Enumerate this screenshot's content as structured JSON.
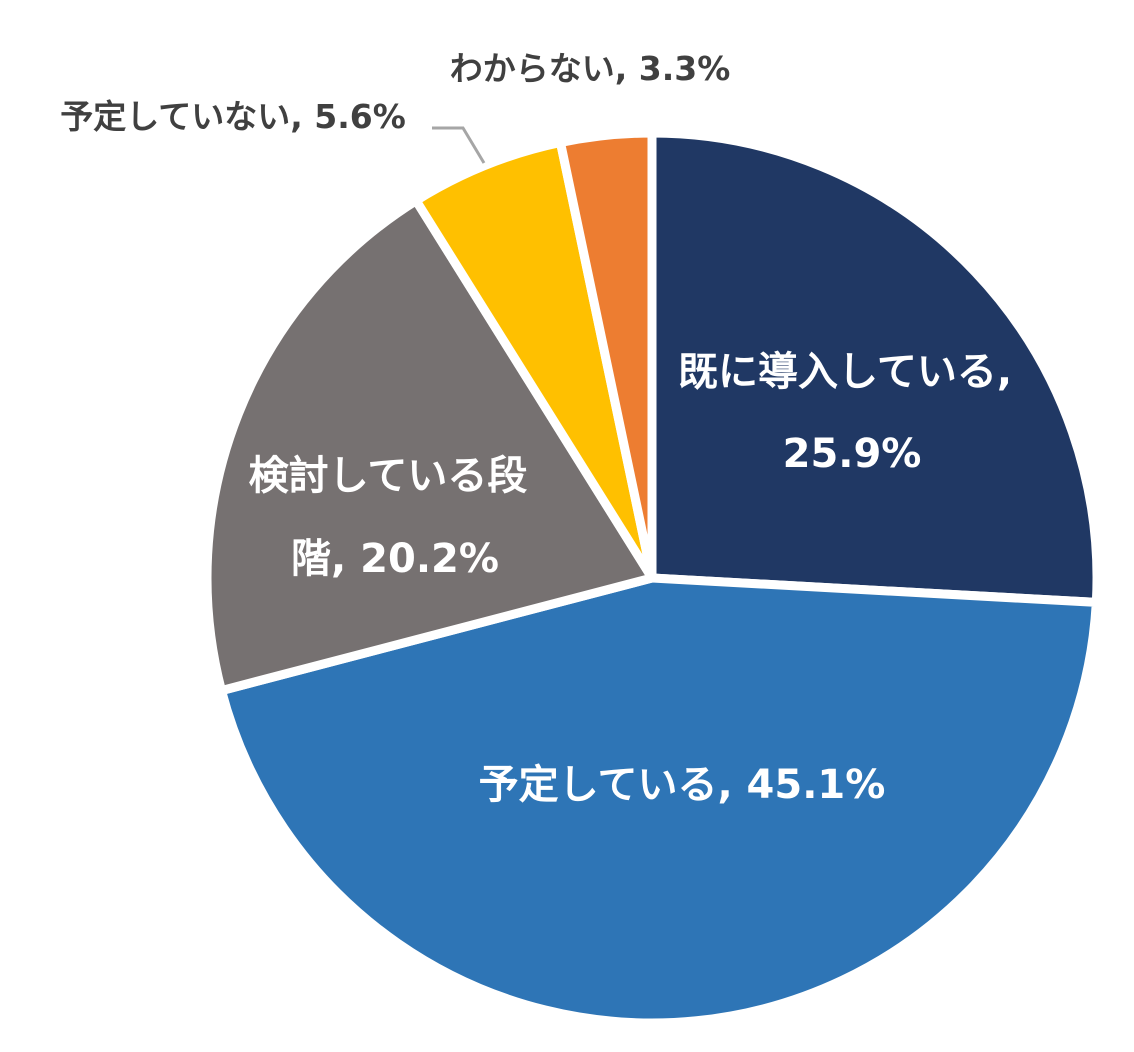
{
  "chart_data": {
    "type": "pie",
    "title": "",
    "start_angle_deg": 0,
    "direction": "clockwise",
    "slices": [
      {
        "label": "既に導入している",
        "value": 25.9,
        "value_text": "25.9%",
        "color": "#203864",
        "label_lines": [
          "既に導入している,",
          "25.9%"
        ]
      },
      {
        "label": "予定している",
        "value": 45.1,
        "value_text": "45.1%",
        "color": "#2E75B6",
        "label_lines": [
          "予定している, 45.1%"
        ]
      },
      {
        "label": "検討している段階",
        "value": 20.2,
        "value_text": "20.2%",
        "color": "#767171",
        "label_lines": [
          "検討している段",
          "階, 20.2%"
        ]
      },
      {
        "label": "予定していない",
        "value": 5.6,
        "value_text": "5.6%",
        "color": "#FFC000",
        "label_lines": [
          "予定していない, 5.6%"
        ]
      },
      {
        "label": "わからない",
        "value": 3.3,
        "value_text": "3.3%",
        "color": "#ED7D31",
        "label_lines": [
          "わからない, 3.3%"
        ]
      }
    ],
    "leader_line_color": "#A6A6A6",
    "label_color_outside": "#404040",
    "label_color_inside": "#FFFFFF"
  }
}
